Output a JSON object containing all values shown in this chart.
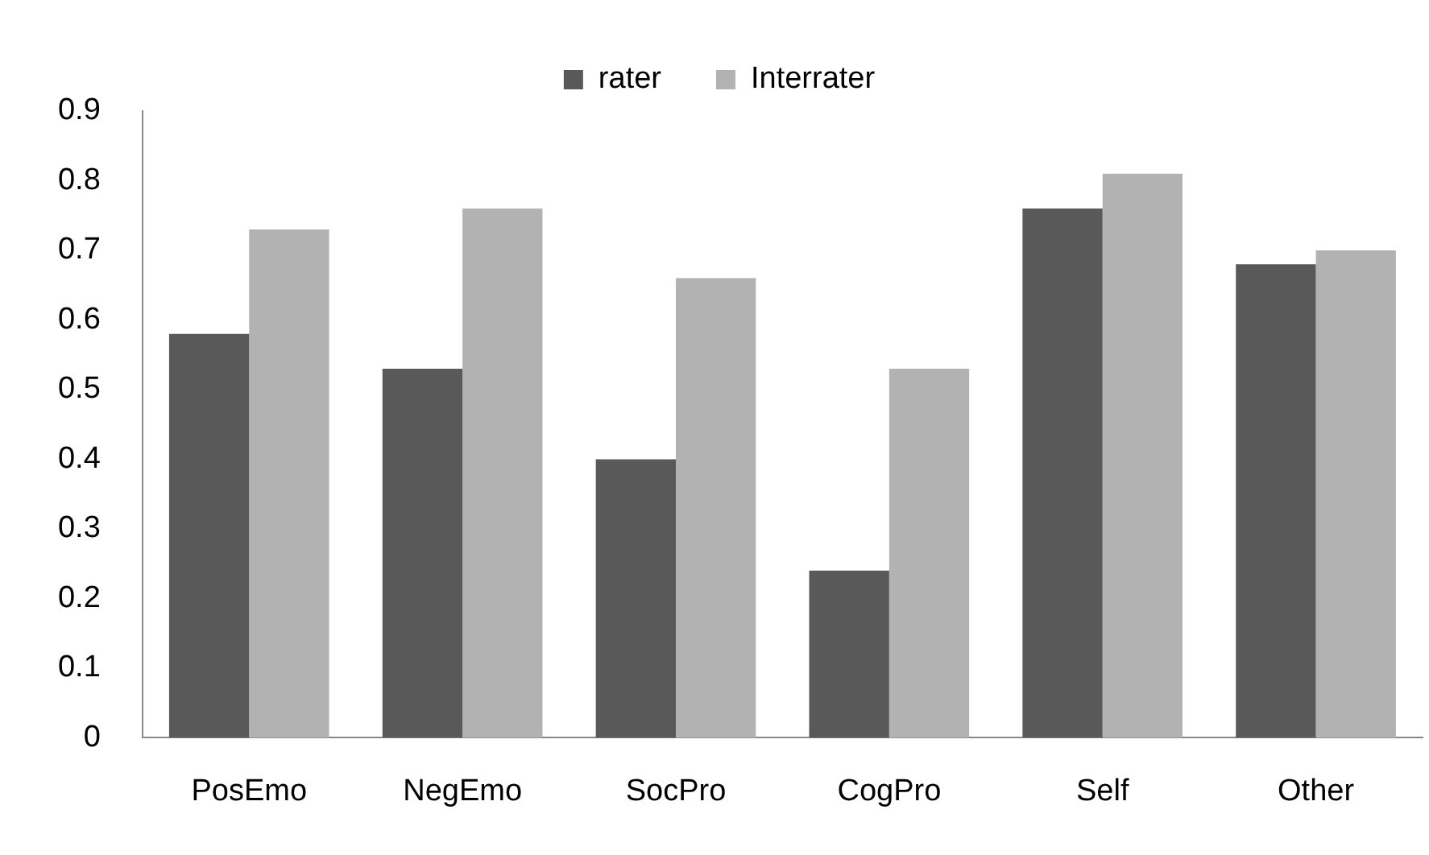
{
  "chart_data": {
    "type": "bar",
    "categories": [
      "PosEmo",
      "NegEmo",
      "SocPro",
      "CogPro",
      "Self",
      "Other"
    ],
    "series": [
      {
        "name": "rater",
        "color": "#595959",
        "values": [
          0.58,
          0.53,
          0.4,
          0.24,
          0.76,
          0.68
        ]
      },
      {
        "name": "Interrater",
        "color": "#b2b2b2",
        "values": [
          0.73,
          0.76,
          0.66,
          0.53,
          0.81,
          0.7
        ]
      }
    ],
    "ylim": [
      0,
      0.9
    ],
    "yticks": [
      0,
      0.1,
      0.2,
      0.3,
      0.4,
      0.5,
      0.6,
      0.7,
      0.8,
      0.9
    ],
    "grid": false,
    "legend": "top"
  }
}
